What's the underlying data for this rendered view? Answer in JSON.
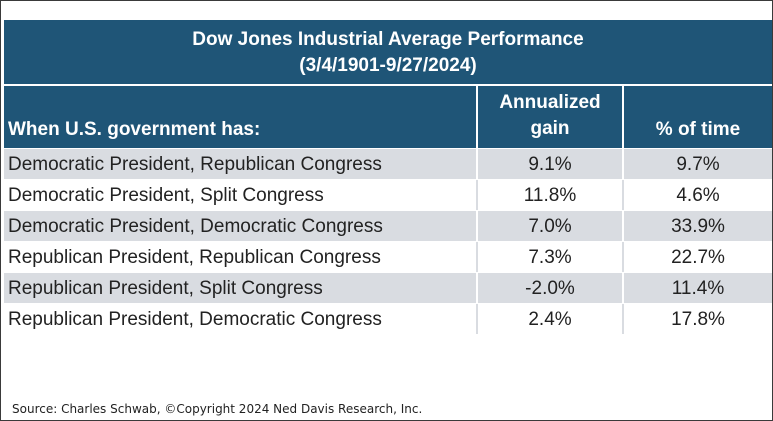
{
  "chart_data": {
    "type": "table",
    "title": "Dow Jones Industrial Average Performance",
    "subtitle": "(3/4/1901-9/27/2024)",
    "columns": [
      "When U.S. government has:",
      "Annualized gain",
      "% of time"
    ],
    "rows": [
      {
        "label": "Democratic President, Republican Congress",
        "annualized_gain": "9.1%",
        "pct_time": "9.7%"
      },
      {
        "label": "Democratic President, Split Congress",
        "annualized_gain": "11.8%",
        "pct_time": "4.6%"
      },
      {
        "label": "Democratic President, Democratic Congress",
        "annualized_gain": "7.0%",
        "pct_time": "33.9%"
      },
      {
        "label": "Republican President, Republican Congress",
        "annualized_gain": "7.3%",
        "pct_time": "22.7%"
      },
      {
        "label": "Republican President, Split Congress",
        "annualized_gain": "-2.0%",
        "pct_time": "11.4%"
      },
      {
        "label": "Republican President, Democratic Congress",
        "annualized_gain": "2.4%",
        "pct_time": "17.8%"
      }
    ]
  },
  "source": "Source: Charles Schwab, ©Copyright 2024 Ned Davis Research, Inc.",
  "colors": {
    "header_bg": "#1f5577",
    "band_row": "#d9dce1",
    "text": "#222222"
  }
}
